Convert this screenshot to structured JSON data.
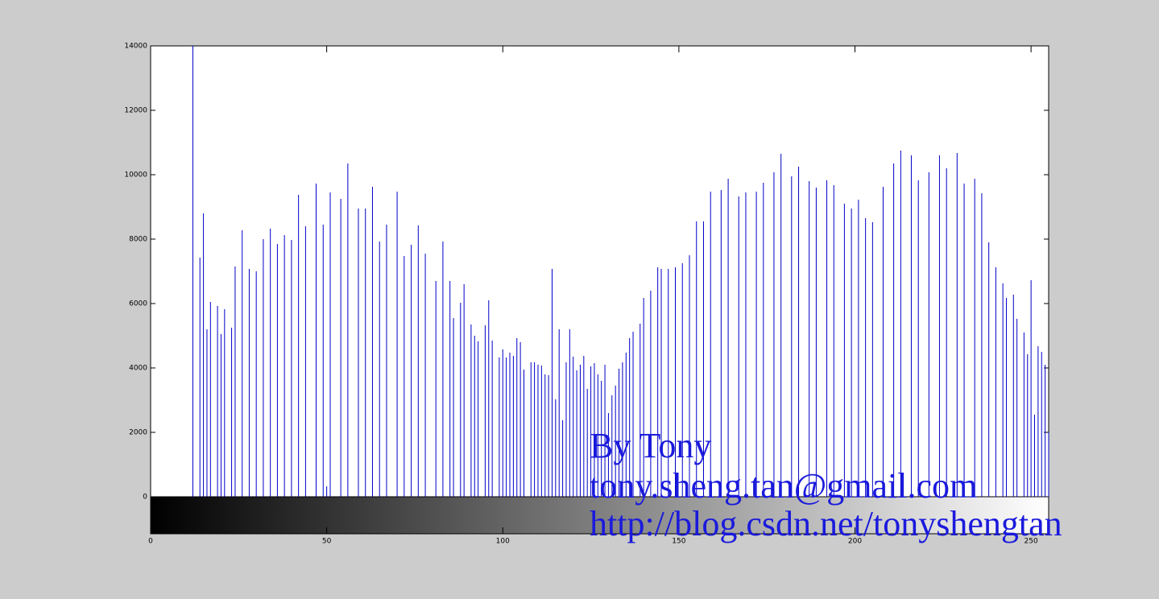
{
  "chart_data": {
    "type": "stem",
    "color": "#0000c8",
    "x": [
      12,
      14,
      15,
      16,
      17,
      19,
      20,
      21,
      23,
      24,
      26,
      28,
      30,
      32,
      34,
      36,
      38,
      40,
      42,
      44,
      47,
      49,
      50,
      51,
      54,
      56,
      59,
      61,
      63,
      65,
      67,
      70,
      72,
      74,
      76,
      78,
      81,
      83,
      85,
      86,
      88,
      89,
      91,
      92,
      93,
      95,
      96,
      97,
      99,
      100,
      101,
      102,
      103,
      104,
      105,
      106,
      108,
      109,
      110,
      111,
      112,
      113,
      114,
      115,
      116,
      117,
      118,
      119,
      120,
      121,
      122,
      123,
      124,
      125,
      126,
      127,
      128,
      129,
      130,
      131,
      132,
      133,
      134,
      135,
      136,
      137,
      139,
      140,
      142,
      144,
      145,
      147,
      149,
      151,
      153,
      155,
      157,
      159,
      162,
      164,
      167,
      169,
      172,
      174,
      177,
      179,
      182,
      184,
      187,
      189,
      192,
      194,
      197,
      199,
      201,
      203,
      205,
      208,
      211,
      213,
      216,
      218,
      221,
      224,
      226,
      229,
      231,
      234,
      236,
      238,
      240,
      242,
      243,
      245,
      246,
      248,
      249,
      250,
      251,
      252,
      253,
      254,
      255
    ],
    "values": [
      14000,
      7425,
      8800,
      5200,
      6050,
      5925,
      5050,
      5825,
      5250,
      7150,
      8275,
      7075,
      7000,
      8000,
      8325,
      7850,
      8125,
      7975,
      9375,
      8400,
      9725,
      8450,
      325,
      9450,
      9250,
      10350,
      8950,
      8950,
      9625,
      7925,
      8450,
      9475,
      7475,
      7825,
      8425,
      7550,
      6700,
      7925,
      6700,
      5550,
      6025,
      6600,
      5350,
      5000,
      4825,
      5325,
      6100,
      4850,
      4325,
      4575,
      4325,
      4475,
      4375,
      4925,
      4800,
      3950,
      4175,
      4175,
      4100,
      4075,
      3800,
      3775,
      7075,
      3025,
      5200,
      2375,
      4175,
      5200,
      4350,
      3925,
      4100,
      4375,
      3350,
      4050,
      4150,
      3800,
      3600,
      4100,
      2600,
      3150,
      3450,
      3975,
      4175,
      4475,
      4925,
      5125,
      5375,
      6175,
      6400,
      7125,
      7075,
      7075,
      7125,
      7250,
      7500,
      8550,
      8550,
      9475,
      9525,
      9875,
      9325,
      9450,
      9475,
      9750,
      10075,
      10650,
      9950,
      10250,
      9800,
      9600,
      9825,
      9675,
      9100,
      8950,
      9225,
      8650,
      8525,
      9625,
      10350,
      10750,
      10600,
      9825,
      10075,
      10600,
      10200,
      10675,
      9725,
      9875,
      9425,
      7900,
      7125,
      6625,
      6175,
      6275,
      5525,
      5100,
      4425,
      6725,
      2550,
      4675,
      4500,
      4100,
      2000
    ],
    "xlim": [
      0,
      255
    ],
    "xticks": [
      0,
      50,
      100,
      150,
      200,
      250
    ],
    "ylim": [
      0,
      14000
    ],
    "yticks": [
      0,
      2000,
      4000,
      6000,
      8000,
      10000,
      12000,
      14000
    ],
    "annotations": [
      "By Tony",
      "tony.sheng.tan@gmail.com",
      "http://blog.csdn.net/tonyshengtan"
    ]
  }
}
